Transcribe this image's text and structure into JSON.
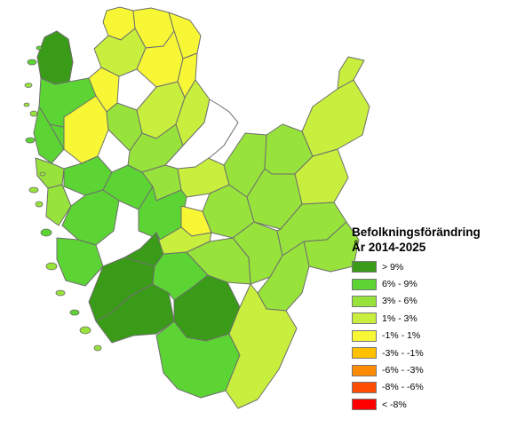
{
  "legend": {
    "title": "Befolkningsförändring",
    "subtitle": "År 2014-2025",
    "classes": [
      {
        "label": "> 9%",
        "color": "#3a9b18"
      },
      {
        "label": "6% - 9%",
        "color": "#5cd433"
      },
      {
        "label": "3% - 6%",
        "color": "#97e33b"
      },
      {
        "label": "1% - 3%",
        "color": "#c8ef3d"
      },
      {
        "label": "-1% - 1%",
        "color": "#f7f736"
      },
      {
        "label": "-3% - -1%",
        "color": "#ffc000"
      },
      {
        "label": "-6% - -3%",
        "color": "#ff8b00"
      },
      {
        "label": "-8% - -6%",
        "color": "#ff4c00"
      },
      {
        "label": "< -8%",
        "color": "#ff0000"
      }
    ]
  },
  "map": {
    "border_color": "#6e6e6e",
    "municipality_classes": [
      "-1% - 1%",
      "-1% - 1%",
      "-1% - 1%",
      "1% - 3%",
      "-1% - 1%",
      "-1% - 1%",
      "> 9%",
      "6% - 9%",
      "-1% - 1%",
      "6% - 9%",
      "6% - 9%",
      "-1% - 1%",
      "3% - 6%",
      "6% - 9%",
      "3% - 6%",
      "1% - 3%",
      "3% - 6%",
      "1% - 3%",
      "3% - 6%",
      "6% - 9%",
      "6% - 9%",
      "6% - 9%",
      "3% - 6%",
      "1% - 3%",
      "6% - 9%",
      "3% - 6%",
      "-1% - 1%",
      "3% - 6%",
      "3% - 6%",
      "> 9%",
      "> 9%",
      "> 9%",
      "> 9%",
      "6% - 9%",
      "3% - 6%",
      "1% - 3%",
      "3% - 6%",
      "3% - 6%",
      "1% - 3%",
      "3% - 6%",
      "3% - 6%",
      "3% - 6%",
      "1% - 3%",
      "1% - 3%",
      "6% - 9%",
      "1% - 3%"
    ]
  }
}
